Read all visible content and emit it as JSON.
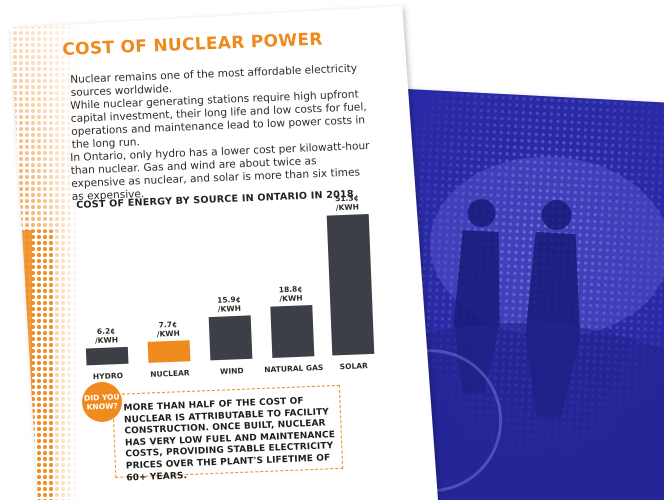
{
  "section": {
    "title": "COST OF NUCLEAR POWER",
    "paragraphs": [
      "Nuclear remains one of the most affordable electricity sources worldwide.",
      "While nuclear generating stations require high upfront capital investment, their long life and low costs for fuel, operations and maintenance lead to low power costs in the long run.",
      "In Ontario, only hydro has a lower cost per kilowatt-hour than nuclear. Gas and wind are about twice as expensive as nuclear, and solar is more than six times as expensive."
    ]
  },
  "colors": {
    "accent": "#ef8a1e",
    "bar": "#3d3f47",
    "highlight_bar": "#ef8a1e",
    "blue_page": "#2a2aa6"
  },
  "chart_data": {
    "type": "bar",
    "title": "COST OF ENERGY BY SOURCE IN ONTARIO IN 2018",
    "categories": [
      "HYDRO",
      "NUCLEAR",
      "WIND",
      "NATURAL GAS",
      "SOLAR"
    ],
    "values": [
      6.2,
      7.7,
      15.9,
      18.8,
      51.3
    ],
    "value_labels": [
      "6.2¢ /KWH",
      "7.7¢ /KWH",
      "15.9¢ /KWH",
      "18.8¢ /KWH",
      "51.3¢ /KWH"
    ],
    "highlight": "NUCLEAR",
    "ylim": [
      0,
      51.3
    ],
    "grid": false
  },
  "callout": {
    "badge": "DID YOU KNOW?",
    "text": "MORE THAN HALF OF THE COST OF NUCLEAR IS ATTRIBUTABLE TO FACILITY CONSTRUCTION. ONCE BUILT, NUCLEAR HAS VERY LOW FUEL AND MAINTENANCE COSTS, PROVIDING STABLE ELECTRICITY PRICES OVER THE PLANT'S LIFETIME OF 60+ YEARS."
  }
}
